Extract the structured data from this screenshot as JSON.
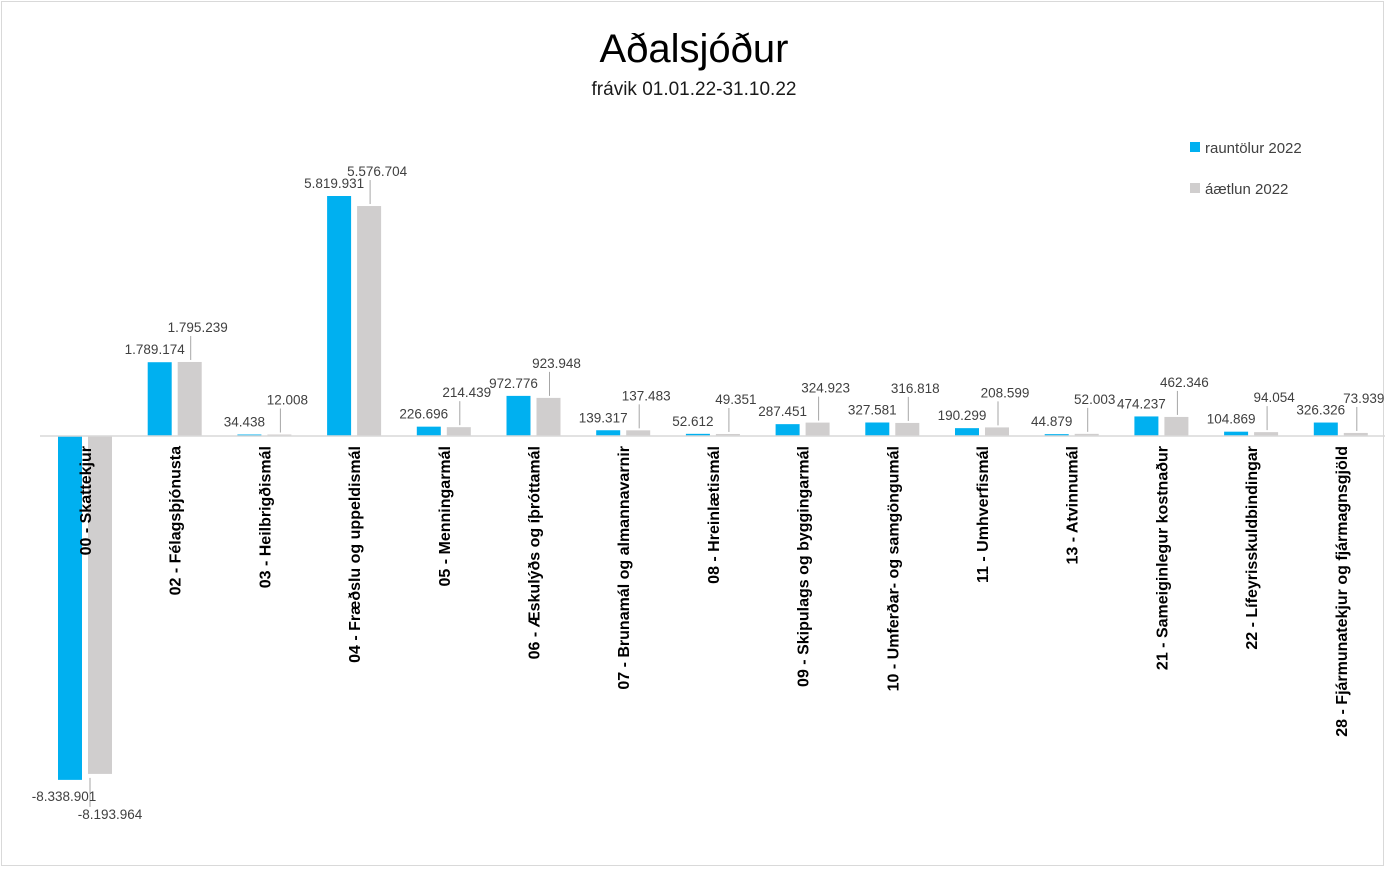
{
  "chart_data": {
    "type": "bar",
    "title": "Aðalsjóður",
    "subtitle": "frávik 01.01.22-31.10.22",
    "categories": [
      "00 - Skattekjur",
      "02 - Félagsþjónusta",
      "03 - Heilbrigðismál",
      "04 - Fræðslu og uppeldismál",
      "05 - Menningarmál",
      "06 - Æskulýðs og íþróttamál",
      "07 - Brunamál og almannavarnir",
      "08 - Hreinlætismál",
      "09 - Skipulags og byggingarmál",
      "10 - Umferðar- og samgöngumál",
      "11 - Umhverfismál",
      "13 - Atvinnumál",
      "21 - Sameiginlegur kostnaður",
      "22 - Lífeyrisskuldbindingar",
      "28 - Fjármunatekjur og fjármagnsgjöld"
    ],
    "series": [
      {
        "name": "rauntölur 2022",
        "color": "#00b0f0",
        "values": [
          -8338901,
          1789174,
          34438,
          5819931,
          226696,
          972776,
          139317,
          52612,
          287451,
          327581,
          190299,
          44879,
          474237,
          104869,
          326326
        ],
        "labels": [
          "-8.338.901",
          "1.789.174",
          "34.438",
          "5.819.931",
          "226.696",
          "972.776",
          "139.317",
          "52.612",
          "287.451",
          "327.581",
          "190.299",
          "44.879",
          "474.237",
          "104.869",
          "326.326"
        ]
      },
      {
        "name": "áætlun 2022",
        "color": "#d0cece",
        "values": [
          -8193964,
          1795239,
          12008,
          5576704,
          214439,
          923948,
          137483,
          49351,
          324923,
          316818,
          208599,
          52003,
          462346,
          94054,
          73939
        ],
        "labels": [
          "-8.193.964",
          "1.795.239",
          "12.008",
          "5.576.704",
          "214.439",
          "923.948",
          "137.483",
          "49.351",
          "324.923",
          "316.818",
          "208.599",
          "52.003",
          "462.346",
          "94.054",
          "73.939"
        ]
      }
    ],
    "legend_position": "top-right",
    "grid": false
  }
}
